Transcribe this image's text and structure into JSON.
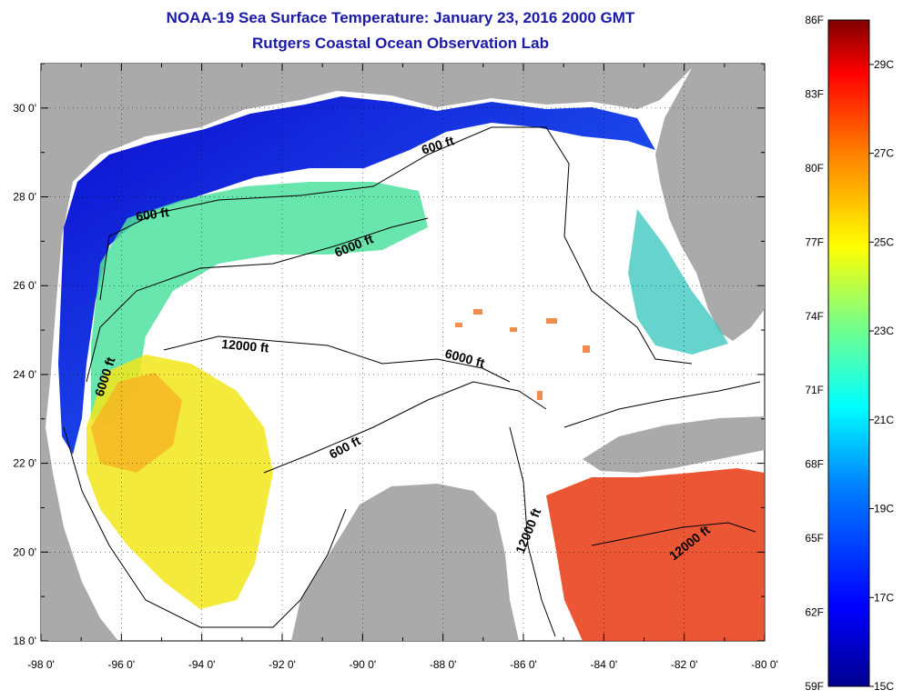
{
  "title": "NOAA-19 Sea Surface Temperature:  January 23, 2016 2000 GMT",
  "subtitle": "Rutgers Coastal Ocean Observation Lab",
  "map": {
    "lon_ticks": [
      "-98 0'",
      "-96 0'",
      "-94 0'",
      "-92 0'",
      "-90 0'",
      "-88 0'",
      "-86 0'",
      "-84 0'",
      "-82 0'",
      "-80 0'"
    ],
    "lat_ticks": [
      "30 0'",
      "28 0'",
      "26 0'",
      "24 0'",
      "22 0'",
      "20 0'",
      "18 0'"
    ],
    "lon_range": [
      -98,
      -80
    ],
    "lat_range": [
      18,
      31
    ],
    "contour_labels": [
      "600 ft",
      "600 ft",
      "6000 ft",
      "12000 ft",
      "6000 ft",
      "6000 ft",
      "600 ft",
      "12000 ft",
      "12000 ft"
    ]
  },
  "colorbar": {
    "f_labels": [
      "86F",
      "83F",
      "80F",
      "77F",
      "74F",
      "71F",
      "68F",
      "65F",
      "62F",
      "59F"
    ],
    "c_labels": [
      "29C",
      "27C",
      "25C",
      "23C",
      "21C",
      "19C",
      "17C",
      "15C"
    ],
    "colors": [
      "#00008f",
      "#0000ff",
      "#0080ff",
      "#00ffff",
      "#80ff80",
      "#ffff00",
      "#ff8000",
      "#ff0000",
      "#800000"
    ]
  },
  "colors": {
    "land": "#aaaaaa",
    "title": "#1a1aa6"
  }
}
